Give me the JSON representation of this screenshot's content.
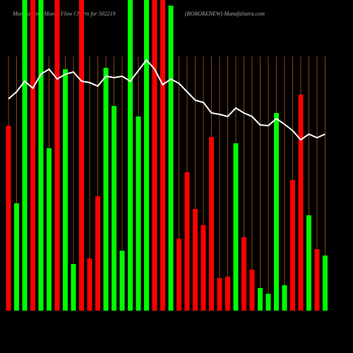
{
  "chart_data": {
    "type": "bar",
    "title": "MunafaSutra  Money Flow  Charts for 502219",
    "subtitle": "(BORORENEW) MunafaSutra.com",
    "categories": [
      null,
      null,
      null,
      null,
      null,
      null,
      null,
      null,
      null,
      null,
      null,
      null,
      null,
      null,
      null,
      null,
      null,
      null,
      null,
      null,
      null,
      null,
      null,
      null,
      null,
      null,
      null,
      null,
      null,
      null,
      null,
      null,
      null,
      null,
      null,
      null,
      null,
      null,
      null,
      null
    ],
    "values": [
      262,
      152,
      440,
      440,
      440,
      230,
      440,
      342,
      66,
      440,
      74,
      162,
      344,
      290,
      85,
      440,
      275,
      440,
      440,
      440,
      432,
      102,
      196,
      144,
      121,
      246,
      46,
      48,
      237,
      104,
      58,
      32,
      24,
      280,
      36,
      185,
      306,
      135,
      87,
      78
    ],
    "colors": [
      "#ff0000",
      "#00ff00",
      "#00ff00",
      "#ff0000",
      "#00ff00",
      "#00ff00",
      "#ff0000",
      "#00ff00",
      "#00ff00",
      "#ff0000",
      "#ff0000",
      "#ff0000",
      "#00ff00",
      "#00ff00",
      "#00ff00",
      "#00ff00",
      "#00ff00",
      "#00ff00",
      "#ff0000",
      "#ff0000",
      "#00ff00",
      "#ff0000",
      "#ff0000",
      "#ff0000",
      "#ff0000",
      "#ff0000",
      "#ff0000",
      "#ff0000",
      "#00ff00",
      "#ff0000",
      "#ff0000",
      "#00ff00",
      "#00ff00",
      "#00ff00",
      "#00ff00",
      "#ff0000",
      "#ff0000",
      "#00ff00",
      "#ff0000",
      "#00ff00"
    ],
    "line_values": [
      300,
      310,
      325,
      315,
      335,
      342,
      328,
      335,
      338,
      325,
      323,
      318,
      332,
      330,
      332,
      325,
      340,
      355,
      342,
      320,
      328,
      322,
      310,
      298,
      295,
      280,
      278,
      275,
      287,
      280,
      275,
      263,
      262,
      272,
      264,
      255,
      242,
      250,
      245,
      250
    ],
    "line_color": "#ffffff",
    "ylim": [
      0,
      440
    ],
    "grid": true,
    "grid_color": "#8b4513"
  }
}
